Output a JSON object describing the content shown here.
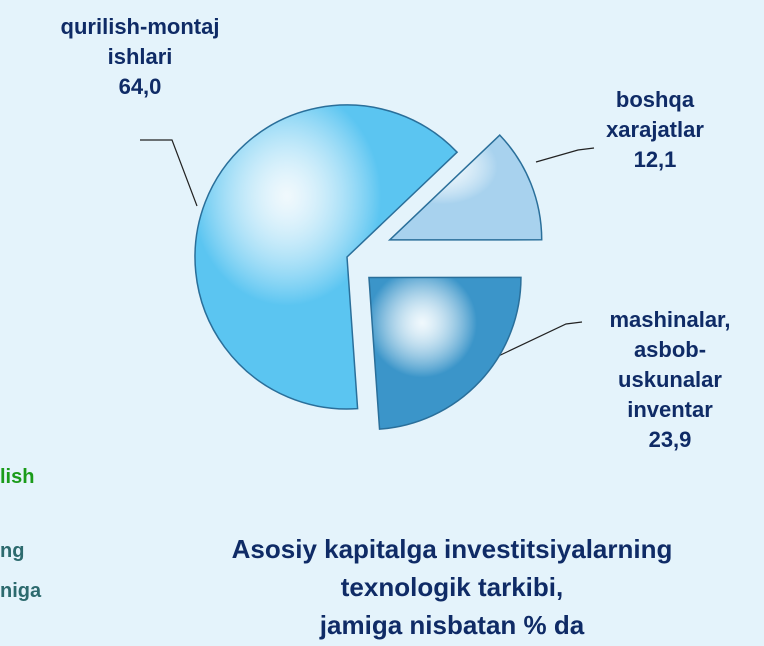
{
  "chart_data": {
    "type": "pie",
    "title": [
      "Asosiy kapitalga investitsiyalarning",
      "texnologik  tarkibi,",
      "jamiga nisbatan % da"
    ],
    "categories": [
      "boshqa xarajatlar",
      "mashinalar, asbob-uskunalar inventar",
      "qurilish-montaj ishlari"
    ],
    "values": [
      12.1,
      23.9,
      64.0
    ],
    "value_labels": [
      "12,1",
      "23,9",
      "64,0"
    ],
    "colors": [
      "#a8d2ee",
      "#3b95c9",
      "#5bc5f1"
    ],
    "annotations": [
      "lish",
      "ng",
      "niga"
    ]
  }
}
